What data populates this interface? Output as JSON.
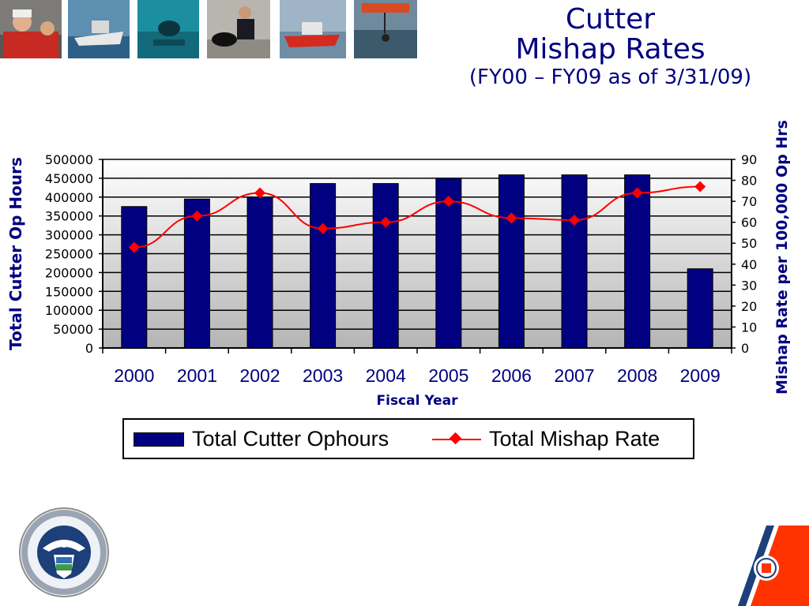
{
  "header": {
    "title_line1": "Cutter",
    "title_line2": "Mishap Rates",
    "subtitle": "(FY00 – FY09 as of 3/31/09)"
  },
  "colors": {
    "title": "#000080",
    "bar": "#000080",
    "line": "#ff0000",
    "coast_guard_orange": "#ff3300"
  },
  "photos": [
    {
      "name": "photo-crew-icon"
    },
    {
      "name": "photo-patrol-boat-icon"
    },
    {
      "name": "photo-diver-icon"
    },
    {
      "name": "photo-dog-handler-icon"
    },
    {
      "name": "photo-response-boat-icon"
    },
    {
      "name": "photo-helicopter-rescue-icon"
    }
  ],
  "chart_data": {
    "type": "bar",
    "categories": [
      "2000",
      "2001",
      "2002",
      "2003",
      "2004",
      "2005",
      "2006",
      "2007",
      "2008",
      "2009"
    ],
    "xlabel": "Fiscal Year",
    "series": [
      {
        "name": "Total Cutter Ophours",
        "type": "bar",
        "axis": "left",
        "values": [
          375000,
          395000,
          400000,
          436000,
          436000,
          450000,
          459000,
          459000,
          459000,
          210000
        ]
      },
      {
        "name": "Total Mishap Rate",
        "type": "line",
        "axis": "right",
        "values": [
          48,
          63,
          74,
          57,
          60,
          70,
          62,
          61,
          74,
          77
        ]
      }
    ],
    "y_left": {
      "label": "Total Cutter Op Hours",
      "range": [
        0,
        500000
      ],
      "ticks": [
        0,
        50000,
        100000,
        150000,
        200000,
        250000,
        300000,
        350000,
        400000,
        450000,
        500000
      ]
    },
    "y_right": {
      "label": "Mishap Rate per 100,000 Op Hrs",
      "range": [
        0,
        90
      ],
      "ticks": [
        0,
        10,
        20,
        30,
        40,
        50,
        60,
        70,
        80,
        90
      ]
    },
    "grid": true,
    "legend": "bottom"
  },
  "footer": {
    "left_logo": "dhs-seal-icon",
    "right_logo": "coast-guard-emblem-icon"
  }
}
